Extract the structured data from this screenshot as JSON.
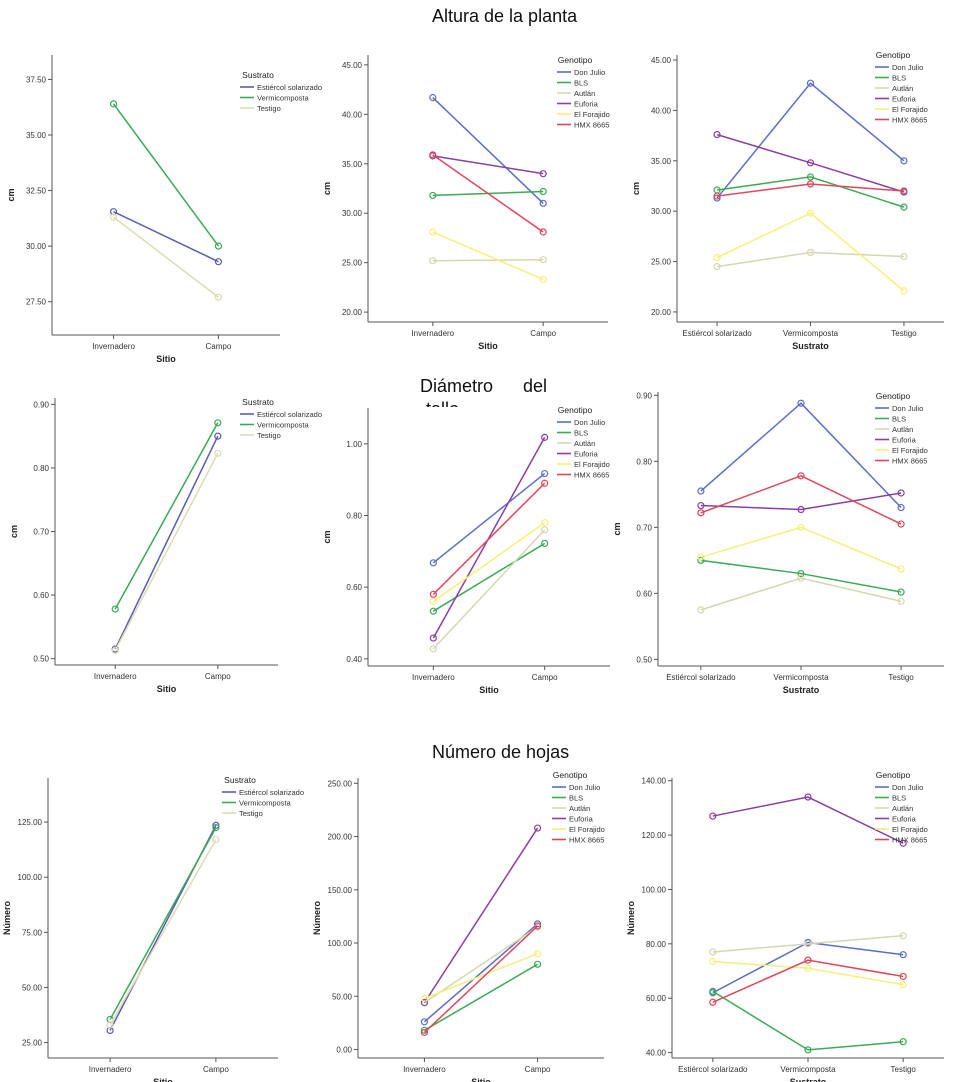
{
  "sections": [
    {
      "title": "Altura de la planta"
    },
    {
      "title": "Diámetro      del",
      "title_cut": "tallo"
    },
    {
      "title": "Número de hojas"
    }
  ],
  "colors": {
    "Estiércol solarizado": "#5b5bb5",
    "Vermicomposta": "#3aaa55",
    "Testigo": "#dcdcb4",
    "Don Julio": "#5b6ec5",
    "BLS": "#3aaa55",
    "Autlán": "#d6d6b0",
    "Euforia": "#8a3fa2",
    "El Forajido": "#f5f07a",
    "HMX 8665": "#e0465a"
  },
  "chart_data": [
    {
      "type": "line",
      "xlabel": "Sitio",
      "ylabel": "cm",
      "legend_title": "Sustrato",
      "legend_position": "top-right",
      "categories": [
        "Invernadero",
        "Campo"
      ],
      "ylim": [
        26,
        38.6
      ],
      "yticks": [
        "27.50",
        "30.00",
        "32.50",
        "35.00",
        "37.50"
      ],
      "series": [
        {
          "name": "Estiércol solarizado",
          "values": [
            31.55,
            29.3
          ]
        },
        {
          "name": "Vermicomposta",
          "values": [
            36.4,
            30.0
          ]
        },
        {
          "name": "Testigo",
          "values": [
            31.3,
            27.7
          ]
        }
      ]
    },
    {
      "type": "line",
      "xlabel": "Sitio",
      "ylabel": "cm",
      "legend_title": "Genotipo",
      "legend_position": "top-right",
      "categories": [
        "Invernadero",
        "Campo"
      ],
      "ylim": [
        19,
        46
      ],
      "yticks": [
        "20.00",
        "25.00",
        "30.00",
        "35.00",
        "40.00",
        "45.00"
      ],
      "series": [
        {
          "name": "Don Julio",
          "values": [
            41.7,
            31.0
          ]
        },
        {
          "name": "BLS",
          "values": [
            31.8,
            32.2
          ]
        },
        {
          "name": "Autlán",
          "values": [
            25.2,
            25.3
          ]
        },
        {
          "name": "Euforia",
          "values": [
            35.8,
            34.0
          ]
        },
        {
          "name": "El Forajido",
          "values": [
            28.1,
            23.3
          ]
        },
        {
          "name": "HMX 8665",
          "values": [
            35.9,
            28.1
          ]
        }
      ]
    },
    {
      "type": "line",
      "xlabel": "Sustrato",
      "ylabel": "cm",
      "legend_title": "Genotipo",
      "legend_position": "top-right",
      "categories": [
        "Estiércol solarizado",
        "Vermicomposta",
        "Testigo"
      ],
      "ylim": [
        19,
        45.5
      ],
      "yticks": [
        "20.00",
        "25.00",
        "30.00",
        "35.00",
        "40.00",
        "45.00"
      ],
      "series": [
        {
          "name": "Don Julio",
          "values": [
            31.3,
            42.7,
            35.0
          ]
        },
        {
          "name": "BLS",
          "values": [
            32.1,
            33.4,
            30.4
          ]
        },
        {
          "name": "Autlán",
          "values": [
            24.5,
            25.9,
            25.5
          ]
        },
        {
          "name": "Euforia",
          "values": [
            37.6,
            34.8,
            31.9
          ]
        },
        {
          "name": "El Forajido",
          "values": [
            25.4,
            29.8,
            22.1
          ]
        },
        {
          "name": "HMX 8665",
          "values": [
            31.5,
            32.7,
            32.0
          ]
        }
      ]
    },
    {
      "type": "line",
      "xlabel": "Sitio",
      "ylabel": "cm",
      "legend_title": "Sustrato",
      "legend_position": "top-right",
      "categories": [
        "Invernadero",
        "Campo"
      ],
      "ylim": [
        0.49,
        0.91
      ],
      "yticks": [
        "0.50",
        "0.60",
        "0.70",
        "0.80",
        "0.90"
      ],
      "series": [
        {
          "name": "Estiércol solarizado",
          "values": [
            0.515,
            0.85
          ]
        },
        {
          "name": "Vermicomposta",
          "values": [
            0.578,
            0.871
          ]
        },
        {
          "name": "Testigo",
          "values": [
            0.513,
            0.823
          ]
        }
      ]
    },
    {
      "type": "line",
      "xlabel": "Sitio",
      "ylabel": "cm",
      "legend_title": "Genotipo",
      "legend_position": "top-right",
      "categories": [
        "Invernadero",
        "Campo"
      ],
      "ylim": [
        0.38,
        1.1
      ],
      "yticks": [
        "0.40",
        "0.60",
        "0.80",
        "1.00"
      ],
      "series": [
        {
          "name": "Don Julio",
          "values": [
            0.668,
            0.917
          ]
        },
        {
          "name": "BLS",
          "values": [
            0.533,
            0.722
          ]
        },
        {
          "name": "Autlán",
          "values": [
            0.428,
            0.76
          ]
        },
        {
          "name": "Euforia",
          "values": [
            0.458,
            1.018
          ]
        },
        {
          "name": "El Forajido",
          "values": [
            0.56,
            0.78
          ]
        },
        {
          "name": "HMX 8665",
          "values": [
            0.58,
            0.89
          ]
        }
      ]
    },
    {
      "type": "line",
      "xlabel": "Sustrato",
      "ylabel": "cm",
      "legend_title": "Genotipo",
      "legend_position": "top-right",
      "categories": [
        "Estiércol solarizado",
        "Vermicomposta",
        "Testigo"
      ],
      "ylim": [
        0.49,
        0.905
      ],
      "yticks": [
        "0.50",
        "0.60",
        "0.70",
        "0.80",
        "0.90"
      ],
      "series": [
        {
          "name": "Don Julio",
          "values": [
            0.755,
            0.888,
            0.73
          ]
        },
        {
          "name": "BLS",
          "values": [
            0.65,
            0.63,
            0.602
          ]
        },
        {
          "name": "Autlán",
          "values": [
            0.575,
            0.623,
            0.588
          ]
        },
        {
          "name": "Euforia",
          "values": [
            0.733,
            0.727,
            0.752
          ]
        },
        {
          "name": "El Forajido",
          "values": [
            0.655,
            0.7,
            0.637
          ]
        },
        {
          "name": "HMX 8665",
          "values": [
            0.722,
            0.778,
            0.705
          ]
        }
      ]
    },
    {
      "type": "line",
      "xlabel": "Sitio",
      "ylabel": "Número",
      "legend_title": "Sustrato",
      "legend_position": "top-right",
      "categories": [
        "Invernadero",
        "Campo"
      ],
      "ylim": [
        18,
        145
      ],
      "yticks": [
        "25.00",
        "50.00",
        "75.00",
        "100.00",
        "125.00"
      ],
      "series": [
        {
          "name": "Estiércol solarizado",
          "values": [
            30.5,
            123.5
          ]
        },
        {
          "name": "Vermicomposta",
          "values": [
            35.5,
            122.5
          ]
        },
        {
          "name": "Testigo",
          "values": [
            33.0,
            117.0
          ]
        }
      ]
    },
    {
      "type": "line",
      "xlabel": "Sitio",
      "ylabel": "Número",
      "legend_title": "Genotipo",
      "legend_position": "top-right",
      "categories": [
        "Invernadero",
        "Campo"
      ],
      "ylim": [
        -8,
        255
      ],
      "yticks": [
        "0.00",
        "50.00",
        "100.00",
        "150.00",
        "200.00",
        "250.00"
      ],
      "series": [
        {
          "name": "Don Julio",
          "values": [
            26,
            118
          ]
        },
        {
          "name": "BLS",
          "values": [
            18,
            80
          ]
        },
        {
          "name": "Autlán",
          "values": [
            44,
            115
          ]
        },
        {
          "name": "Euforia",
          "values": [
            44,
            208
          ]
        },
        {
          "name": "El Forajido",
          "values": [
            48,
            90
          ]
        },
        {
          "name": "HMX 8665",
          "values": [
            16,
            116
          ]
        }
      ]
    },
    {
      "type": "line",
      "xlabel": "Sustrato",
      "ylabel": "Número",
      "legend_title": "Genotipo",
      "legend_position": "top-right",
      "categories": [
        "Estiércol solarizado",
        "Vermicomposta",
        "Testigo"
      ],
      "ylim": [
        38,
        141
      ],
      "yticks": [
        "40.00",
        "60.00",
        "80.00",
        "100.00",
        "120.00",
        "140.00"
      ],
      "series": [
        {
          "name": "Don Julio",
          "values": [
            62,
            80.5,
            76
          ]
        },
        {
          "name": "BLS",
          "values": [
            62.5,
            41,
            44
          ]
        },
        {
          "name": "Autlán",
          "values": [
            77,
            80,
            83
          ]
        },
        {
          "name": "Euforia",
          "values": [
            127,
            134,
            117
          ]
        },
        {
          "name": "El Forajido",
          "values": [
            73.5,
            71,
            65
          ]
        },
        {
          "name": "HMX 8665",
          "values": [
            58.5,
            74,
            68
          ]
        }
      ]
    }
  ]
}
